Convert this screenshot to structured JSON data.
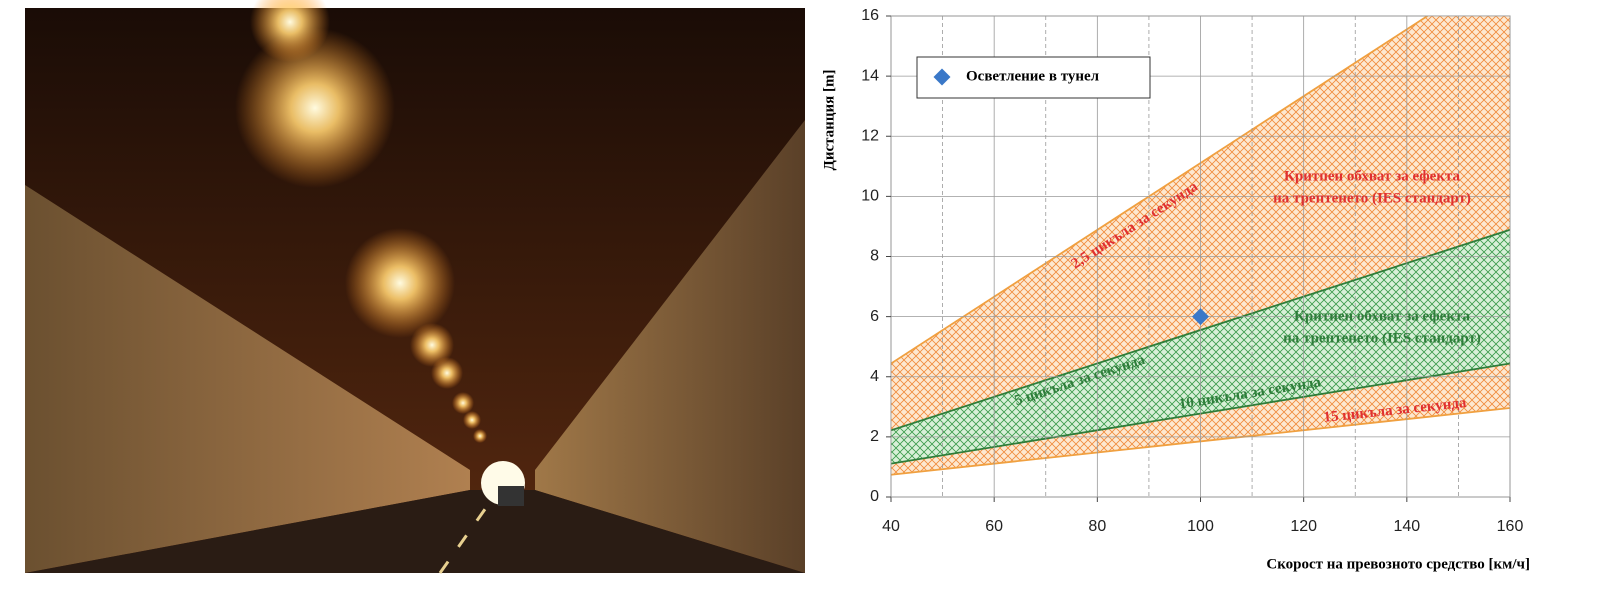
{
  "chart_data": {
    "type": "line",
    "xlabel": "Скорост на превозното средство [км/ч]",
    "ylabel": "Дистанция [m]",
    "xlim": [
      40,
      160
    ],
    "xticks": [
      40,
      60,
      80,
      100,
      120,
      140,
      160
    ],
    "x_minor_grid": [
      50,
      70,
      90,
      110,
      130,
      150
    ],
    "ylim": [
      0,
      16
    ],
    "yticks": [
      0,
      2,
      4,
      6,
      8,
      10,
      12,
      14,
      16
    ],
    "grid": true,
    "series": [
      {
        "name": "2,5 цикъла за секунда",
        "color": "#f0a040",
        "label_color": "#e03030",
        "x": [
          40,
          144
        ],
        "values": [
          4.44,
          16
        ]
      },
      {
        "name": "5 цикъла за секунда",
        "color": "#2e7d3a",
        "label_color": "#2e7d3a",
        "x": [
          40,
          160
        ],
        "values": [
          2.22,
          8.89
        ]
      },
      {
        "name": "10 цикъла за секунда",
        "color": "#2e7d3a",
        "label_color": "#2e7d3a",
        "x": [
          40,
          160
        ],
        "values": [
          1.11,
          4.44
        ]
      },
      {
        "name": "15 цикъла за секунда",
        "color": "#f0a040",
        "label_color": "#e03030",
        "x": [
          40,
          160
        ],
        "values": [
          0.74,
          2.96
        ]
      }
    ],
    "points": {
      "type": "scatter",
      "name": "Осветление в тунел",
      "color": "#3a78c8",
      "x": [
        100
      ],
      "values": [
        6
      ]
    },
    "legend": "upper left",
    "annotations": [
      {
        "lines": [
          "Критпен обхват за ефекта",
          "на трептенето (IES стандарт)"
        ],
        "color": "#e03030"
      },
      {
        "lines": [
          "Критиен обхват за ефекта",
          "на трептенето (IES стандарт)"
        ],
        "color": "#2e7d3a"
      }
    ]
  }
}
